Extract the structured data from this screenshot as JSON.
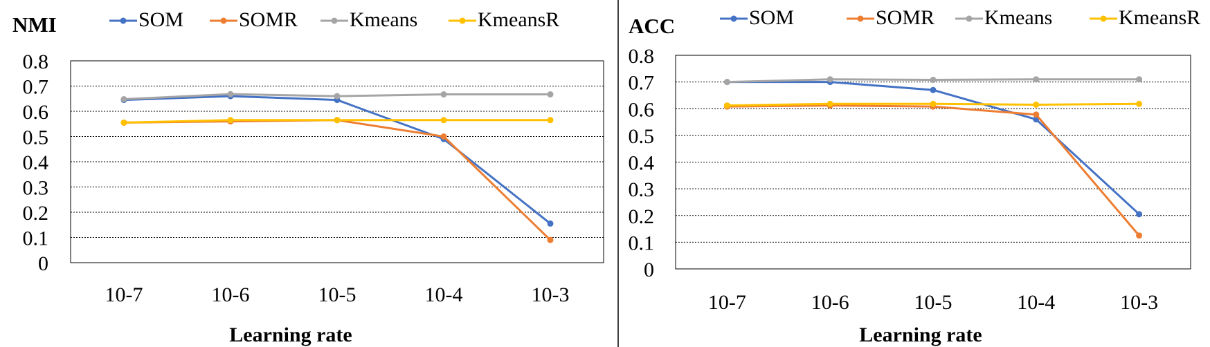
{
  "chart_data": [
    {
      "type": "line",
      "title": "NMI",
      "xlabel": "Learning rate",
      "ylabel": "",
      "categories": [
        "10-7",
        "10-6",
        "10-5",
        "10-4",
        "10-3"
      ],
      "y_ticks": [
        "0",
        "0.1",
        "0.2",
        "0.3",
        "0.4",
        "0.5",
        "0.6",
        "0.7",
        "0.8"
      ],
      "ylim": [
        0,
        0.8
      ],
      "grid": true,
      "legend": "top",
      "series": [
        {
          "name": "SOM",
          "color": "#4472C4",
          "values": [
            0.645,
            0.66,
            0.645,
            0.49,
            0.155
          ]
        },
        {
          "name": "SOMR",
          "color": "#ED7D31",
          "values": [
            0.555,
            0.56,
            0.565,
            0.5,
            0.09
          ]
        },
        {
          "name": "Kmeans",
          "color": "#A5A5A5",
          "values": [
            0.648,
            0.668,
            0.66,
            0.667,
            0.667
          ]
        },
        {
          "name": "KmeansR",
          "color": "#FFC000",
          "values": [
            0.555,
            0.565,
            0.565,
            0.565,
            0.565
          ]
        }
      ]
    },
    {
      "type": "line",
      "title": "ACC",
      "xlabel": "Learning rate",
      "ylabel": "",
      "categories": [
        "10-7",
        "10-6",
        "10-5",
        "10-4",
        "10-3"
      ],
      "y_ticks": [
        "0",
        "0.1",
        "0.2",
        "0.3",
        "0.4",
        "0.5",
        "0.6",
        "0.7",
        "0.8"
      ],
      "ylim": [
        0,
        0.8
      ],
      "grid": true,
      "legend": "top",
      "series": [
        {
          "name": "SOM",
          "color": "#4472C4",
          "values": [
            0.7,
            0.7,
            0.67,
            0.56,
            0.205
          ]
        },
        {
          "name": "SOMR",
          "color": "#ED7D31",
          "values": [
            0.608,
            0.612,
            0.608,
            0.578,
            0.125
          ]
        },
        {
          "name": "Kmeans",
          "color": "#A5A5A5",
          "values": [
            0.7,
            0.71,
            0.708,
            0.71,
            0.71
          ]
        },
        {
          "name": "KmeansR",
          "color": "#FFC000",
          "values": [
            0.612,
            0.618,
            0.618,
            0.615,
            0.618
          ]
        }
      ]
    }
  ]
}
